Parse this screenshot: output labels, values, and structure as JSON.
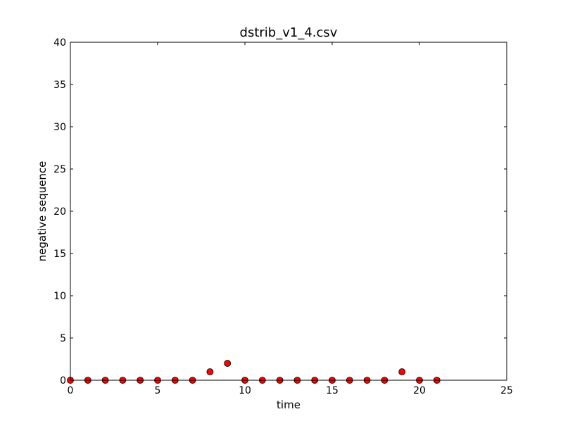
{
  "chart_data": {
    "type": "scatter",
    "title": "dstrib_v1_4.csv",
    "xlabel": "time",
    "ylabel": "negative sequence",
    "xlim": [
      0,
      25
    ],
    "ylim": [
      0,
      40
    ],
    "xticks": [
      0,
      5,
      10,
      15,
      20,
      25
    ],
    "yticks": [
      0,
      5,
      10,
      15,
      20,
      25,
      30,
      35,
      40
    ],
    "grid": false,
    "marker_color": "#ff0000",
    "marker_edge_color": "#000000",
    "x": [
      0,
      1,
      2,
      3,
      4,
      5,
      6,
      7,
      8,
      9,
      10,
      11,
      12,
      13,
      14,
      15,
      16,
      17,
      18,
      19,
      20,
      21
    ],
    "y": [
      0,
      0,
      0,
      0,
      0,
      0,
      0,
      0,
      1,
      2,
      0,
      0,
      0,
      0,
      0,
      0,
      0,
      0,
      0,
      1,
      0,
      0
    ]
  }
}
